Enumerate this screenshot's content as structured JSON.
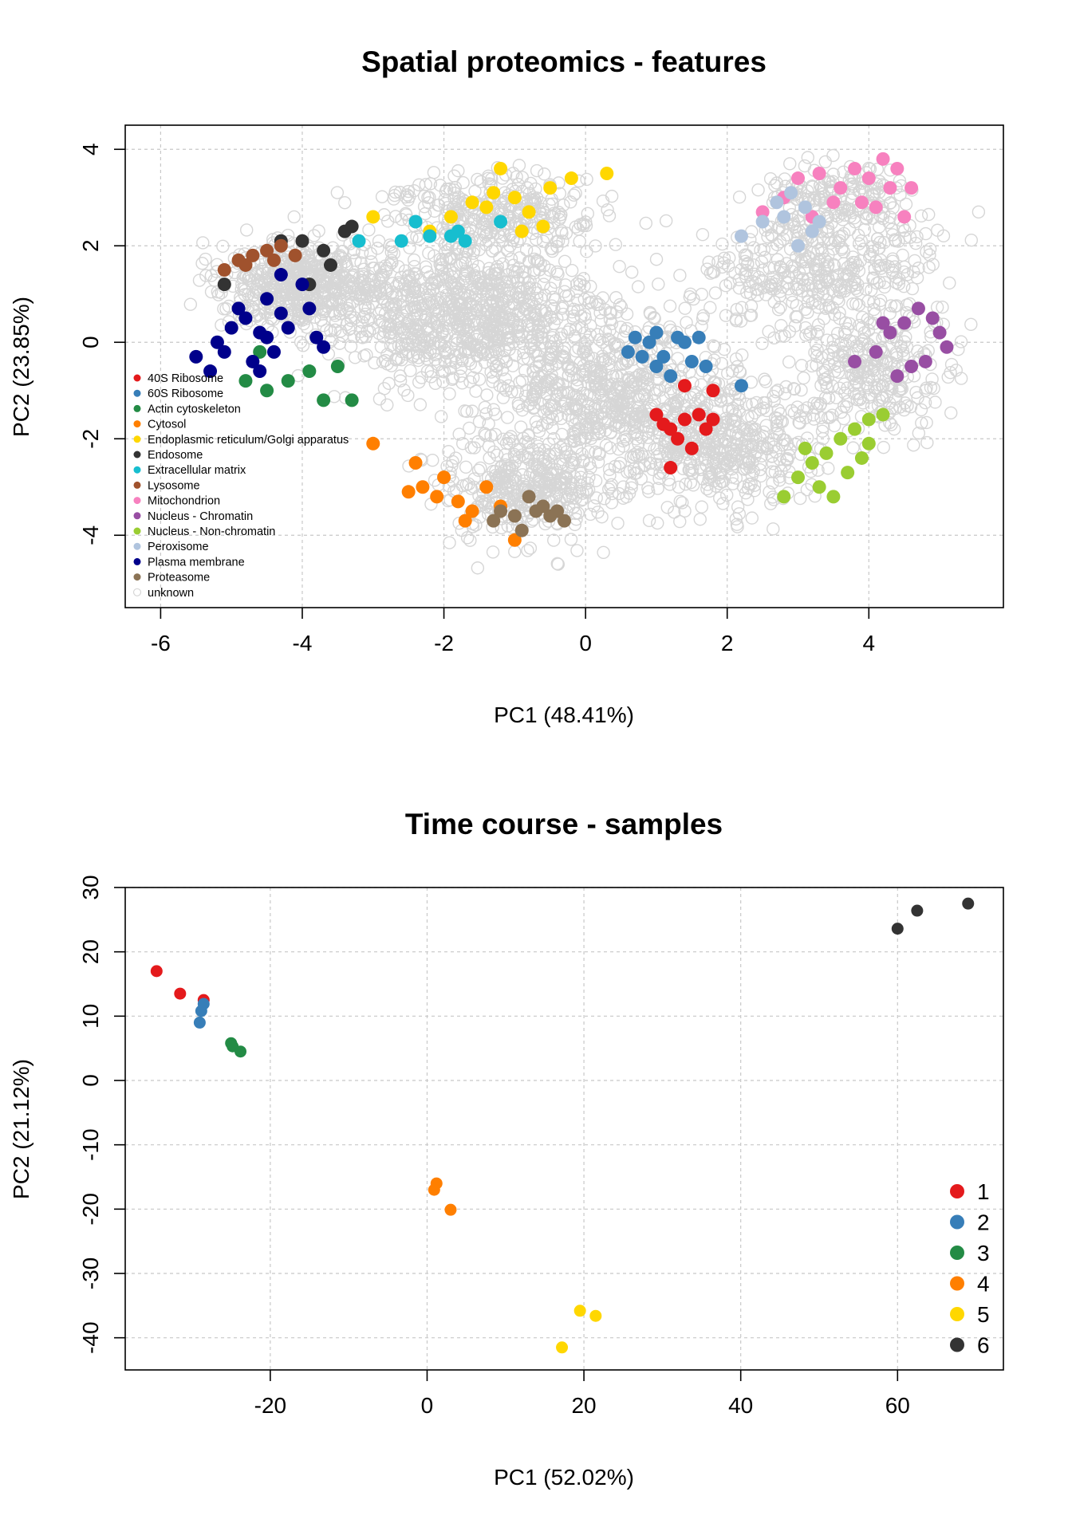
{
  "chart_data": [
    {
      "type": "scatter",
      "title": "Spatial proteomics - features",
      "xlabel": "PC1 (48.41%)",
      "ylabel": "PC2 (23.85%)",
      "xlim": [
        -6.5,
        5.9
      ],
      "ylim": [
        -5.5,
        4.5
      ],
      "xticks": [
        -6,
        -4,
        -2,
        0,
        2,
        4
      ],
      "yticks": [
        -4,
        -2,
        0,
        2,
        4
      ],
      "grid": true,
      "legend_position": "left",
      "unknown_color": "#d6d6d6",
      "series": [
        {
          "name": "40S Ribosome",
          "color": "#e41a1c",
          "points": [
            [
              1.4,
              -0.9
            ],
            [
              1.8,
              -1.0
            ],
            [
              1.0,
              -1.5
            ],
            [
              1.2,
              -1.8
            ],
            [
              1.4,
              -1.6
            ],
            [
              1.6,
              -1.5
            ],
            [
              1.8,
              -1.6
            ],
            [
              1.3,
              -2.0
            ],
            [
              1.5,
              -2.2
            ],
            [
              1.2,
              -2.6
            ],
            [
              1.1,
              -1.7
            ],
            [
              1.7,
              -1.8
            ]
          ]
        },
        {
          "name": "60S Ribosome",
          "color": "#377eb8",
          "points": [
            [
              0.6,
              -0.2
            ],
            [
              0.7,
              0.1
            ],
            [
              0.9,
              0.0
            ],
            [
              1.0,
              0.2
            ],
            [
              1.1,
              -0.3
            ],
            [
              1.3,
              0.1
            ],
            [
              1.5,
              -0.4
            ],
            [
              1.7,
              -0.5
            ],
            [
              1.2,
              -0.7
            ],
            [
              0.8,
              -0.3
            ],
            [
              1.4,
              0.0
            ],
            [
              1.6,
              0.1
            ],
            [
              2.2,
              -0.9
            ],
            [
              1.0,
              -0.5
            ]
          ]
        },
        {
          "name": "Actin cytoskeleton",
          "color": "#238b45",
          "points": [
            [
              -4.8,
              -0.8
            ],
            [
              -4.5,
              -1.0
            ],
            [
              -4.2,
              -0.8
            ],
            [
              -3.9,
              -0.6
            ],
            [
              -3.7,
              -1.2
            ],
            [
              -3.5,
              -0.5
            ],
            [
              -3.3,
              -1.2
            ],
            [
              -4.6,
              -0.2
            ]
          ]
        },
        {
          "name": "Cytosol",
          "color": "#ff7f00",
          "points": [
            [
              -2.4,
              -2.5
            ],
            [
              -2.3,
              -3.0
            ],
            [
              -2.1,
              -3.2
            ],
            [
              -1.8,
              -3.3
            ],
            [
              -1.6,
              -3.5
            ],
            [
              -1.4,
              -3.0
            ],
            [
              -1.2,
              -3.4
            ],
            [
              -1.0,
              -4.1
            ],
            [
              -2.0,
              -2.8
            ],
            [
              -1.7,
              -3.7
            ],
            [
              -3.0,
              -2.1
            ],
            [
              -2.5,
              -3.1
            ]
          ]
        },
        {
          "name": "Endoplasmic reticulum/Golgi apparatus",
          "color": "#ffd700",
          "points": [
            [
              -3.0,
              2.6
            ],
            [
              -2.2,
              2.3
            ],
            [
              -1.9,
              2.6
            ],
            [
              -1.6,
              2.9
            ],
            [
              -1.3,
              3.1
            ],
            [
              -1.0,
              3.0
            ],
            [
              -0.8,
              2.7
            ],
            [
              -0.5,
              3.2
            ],
            [
              -0.2,
              3.4
            ],
            [
              0.3,
              3.5
            ],
            [
              -1.2,
              3.6
            ],
            [
              -0.6,
              2.4
            ],
            [
              -1.4,
              2.8
            ],
            [
              -0.9,
              2.3
            ]
          ]
        },
        {
          "name": "Endosome",
          "color": "#333333",
          "points": [
            [
              -4.3,
              2.1
            ],
            [
              -4.0,
              2.1
            ],
            [
              -3.7,
              1.9
            ],
            [
              -3.4,
              2.3
            ],
            [
              -3.3,
              2.4
            ],
            [
              -3.9,
              1.2
            ],
            [
              -5.1,
              1.2
            ],
            [
              -3.6,
              1.6
            ]
          ]
        },
        {
          "name": "Extracellular matrix",
          "color": "#17becf",
          "points": [
            [
              -2.6,
              2.1
            ],
            [
              -2.4,
              2.5
            ],
            [
              -2.2,
              2.2
            ],
            [
              -1.9,
              2.2
            ],
            [
              -1.8,
              2.3
            ],
            [
              -1.7,
              2.1
            ],
            [
              -1.2,
              2.5
            ],
            [
              -3.2,
              2.1
            ]
          ]
        },
        {
          "name": "Lysosome",
          "color": "#a0522d",
          "points": [
            [
              -5.1,
              1.5
            ],
            [
              -4.9,
              1.7
            ],
            [
              -4.7,
              1.8
            ],
            [
              -4.5,
              1.9
            ],
            [
              -4.3,
              2.0
            ],
            [
              -4.1,
              1.8
            ],
            [
              -4.8,
              1.6
            ],
            [
              -4.4,
              1.7
            ]
          ]
        },
        {
          "name": "Mitochondrion",
          "color": "#f781bf",
          "points": [
            [
              2.5,
              2.7
            ],
            [
              3.0,
              3.4
            ],
            [
              3.3,
              3.5
            ],
            [
              3.6,
              3.2
            ],
            [
              3.8,
              3.6
            ],
            [
              4.0,
              3.4
            ],
            [
              4.2,
              3.8
            ],
            [
              4.4,
              3.6
            ],
            [
              4.6,
              3.2
            ],
            [
              3.2,
              2.6
            ],
            [
              3.5,
              2.9
            ],
            [
              4.1,
              2.8
            ],
            [
              4.5,
              2.6
            ],
            [
              2.8,
              3.0
            ],
            [
              3.9,
              2.9
            ],
            [
              4.3,
              3.2
            ]
          ]
        },
        {
          "name": "Nucleus - Chromatin",
          "color": "#984ea3",
          "points": [
            [
              3.8,
              -0.4
            ],
            [
              4.1,
              -0.2
            ],
            [
              4.3,
              0.2
            ],
            [
              4.5,
              0.4
            ],
            [
              4.7,
              0.7
            ],
            [
              4.9,
              0.5
            ],
            [
              5.0,
              0.2
            ],
            [
              5.1,
              -0.1
            ],
            [
              4.6,
              -0.5
            ],
            [
              4.4,
              -0.7
            ],
            [
              4.8,
              -0.4
            ],
            [
              4.2,
              0.4
            ]
          ]
        },
        {
          "name": "Nucleus - Non-chromatin",
          "color": "#9acd32",
          "points": [
            [
              2.8,
              -3.2
            ],
            [
              3.0,
              -2.8
            ],
            [
              3.2,
              -2.5
            ],
            [
              3.4,
              -2.3
            ],
            [
              3.6,
              -2.0
            ],
            [
              3.8,
              -1.8
            ],
            [
              4.0,
              -1.6
            ],
            [
              4.2,
              -1.5
            ],
            [
              3.5,
              -3.2
            ],
            [
              3.1,
              -2.2
            ],
            [
              3.7,
              -2.7
            ],
            [
              4.0,
              -2.1
            ],
            [
              3.3,
              -3.0
            ],
            [
              3.9,
              -2.4
            ]
          ]
        },
        {
          "name": "Peroxisome",
          "color": "#b0c4de",
          "points": [
            [
              2.2,
              2.2
            ],
            [
              2.5,
              2.5
            ],
            [
              2.7,
              2.9
            ],
            [
              2.9,
              3.1
            ],
            [
              3.1,
              2.8
            ],
            [
              3.3,
              2.5
            ],
            [
              3.0,
              2.0
            ],
            [
              2.8,
              2.6
            ],
            [
              3.2,
              2.3
            ]
          ]
        },
        {
          "name": "Plasma membrane",
          "color": "#00008b",
          "points": [
            [
              -5.5,
              -0.3
            ],
            [
              -5.3,
              -0.6
            ],
            [
              -5.2,
              0.0
            ],
            [
              -5.0,
              0.3
            ],
            [
              -4.8,
              0.5
            ],
            [
              -4.6,
              0.2
            ],
            [
              -4.5,
              0.9
            ],
            [
              -4.3,
              0.6
            ],
            [
              -4.2,
              0.3
            ],
            [
              -4.0,
              1.2
            ],
            [
              -3.9,
              0.7
            ],
            [
              -4.7,
              -0.4
            ],
            [
              -4.4,
              -0.2
            ],
            [
              -3.8,
              0.1
            ],
            [
              -5.1,
              -0.2
            ],
            [
              -4.9,
              0.7
            ],
            [
              -4.6,
              -0.6
            ],
            [
              -4.3,
              1.4
            ],
            [
              -3.7,
              -0.1
            ],
            [
              -4.5,
              0.1
            ]
          ]
        },
        {
          "name": "Proteasome",
          "color": "#8b7355",
          "points": [
            [
              -1.2,
              -3.5
            ],
            [
              -1.0,
              -3.6
            ],
            [
              -0.8,
              -3.2
            ],
            [
              -0.6,
              -3.4
            ],
            [
              -0.5,
              -3.6
            ],
            [
              -0.3,
              -3.7
            ],
            [
              -0.9,
              -3.9
            ],
            [
              -1.3,
              -3.7
            ],
            [
              -0.7,
              -3.5
            ],
            [
              -0.4,
              -3.5
            ]
          ]
        }
      ],
      "unknown_label": "unknown"
    },
    {
      "type": "scatter",
      "title": "Time course - samples",
      "xlabel": "PC1 (52.02%)",
      "ylabel": "PC2 (21.12%)",
      "xlim": [
        -38.5,
        73.5
      ],
      "ylim": [
        -45.0,
        30.0
      ],
      "xticks": [
        -20,
        0,
        20,
        40,
        60
      ],
      "yticks": [
        -40,
        -30,
        -20,
        -10,
        0,
        10,
        20,
        30
      ],
      "grid": true,
      "legend_position": "bottom-right",
      "series": [
        {
          "name": "1",
          "color": "#e41a1c",
          "points": [
            [
              -34.5,
              17.0
            ],
            [
              -31.5,
              13.5
            ],
            [
              -28.5,
              12.5
            ]
          ]
        },
        {
          "name": "2",
          "color": "#377eb8",
          "points": [
            [
              -29.0,
              9.0
            ],
            [
              -28.8,
              10.8
            ],
            [
              -28.5,
              11.9
            ]
          ]
        },
        {
          "name": "3",
          "color": "#238b45",
          "points": [
            [
              -25.0,
              5.8
            ],
            [
              -24.8,
              5.3
            ],
            [
              -23.8,
              4.5
            ]
          ]
        },
        {
          "name": "4",
          "color": "#ff7f00",
          "points": [
            [
              1.2,
              -16.0
            ],
            [
              0.9,
              -17.0
            ],
            [
              3.0,
              -20.1
            ]
          ]
        },
        {
          "name": "5",
          "color": "#ffd700",
          "points": [
            [
              19.5,
              -35.8
            ],
            [
              21.5,
              -36.6
            ],
            [
              17.2,
              -41.5
            ]
          ]
        },
        {
          "name": "6",
          "color": "#333333",
          "points": [
            [
              60.0,
              23.6
            ],
            [
              62.5,
              26.4
            ],
            [
              69.0,
              27.5
            ]
          ]
        }
      ]
    }
  ]
}
